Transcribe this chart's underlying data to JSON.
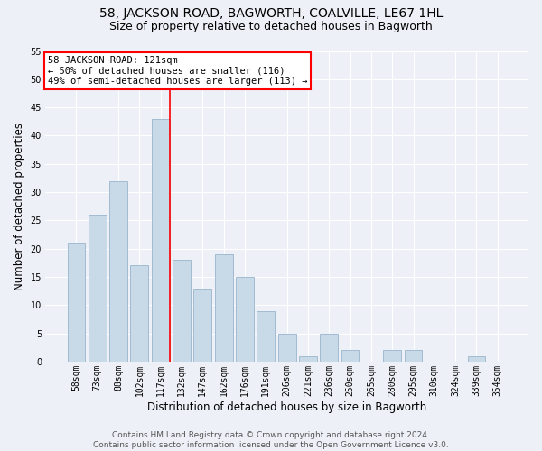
{
  "title": "58, JACKSON ROAD, BAGWORTH, COALVILLE, LE67 1HL",
  "subtitle": "Size of property relative to detached houses in Bagworth",
  "xlabel": "Distribution of detached houses by size in Bagworth",
  "ylabel": "Number of detached properties",
  "categories": [
    "58sqm",
    "73sqm",
    "88sqm",
    "102sqm",
    "117sqm",
    "132sqm",
    "147sqm",
    "162sqm",
    "176sqm",
    "191sqm",
    "206sqm",
    "221sqm",
    "236sqm",
    "250sqm",
    "265sqm",
    "280sqm",
    "295sqm",
    "310sqm",
    "324sqm",
    "339sqm",
    "354sqm"
  ],
  "values": [
    21,
    26,
    32,
    17,
    43,
    18,
    13,
    19,
    15,
    9,
    5,
    1,
    5,
    2,
    0,
    2,
    2,
    0,
    0,
    1,
    0
  ],
  "bar_color": "#c8d9e8",
  "bar_edge_color": "#9ab5cc",
  "background_color": "#edf1f7",
  "annotation_text": "58 JACKSON ROAD: 121sqm\n← 50% of detached houses are smaller (116)\n49% of semi-detached houses are larger (113) →",
  "annotation_box_color": "white",
  "annotation_box_edge_color": "red",
  "vline_x": 4.43,
  "vline_color": "red",
  "ylim": [
    0,
    55
  ],
  "yticks": [
    0,
    5,
    10,
    15,
    20,
    25,
    30,
    35,
    40,
    45,
    50,
    55
  ],
  "footer_text": "Contains HM Land Registry data © Crown copyright and database right 2024.\nContains public sector information licensed under the Open Government Licence v3.0.",
  "title_fontsize": 10,
  "subtitle_fontsize": 9,
  "xlabel_fontsize": 8.5,
  "ylabel_fontsize": 8.5,
  "tick_fontsize": 7,
  "footer_fontsize": 6.5,
  "annotation_fontsize": 7.5
}
